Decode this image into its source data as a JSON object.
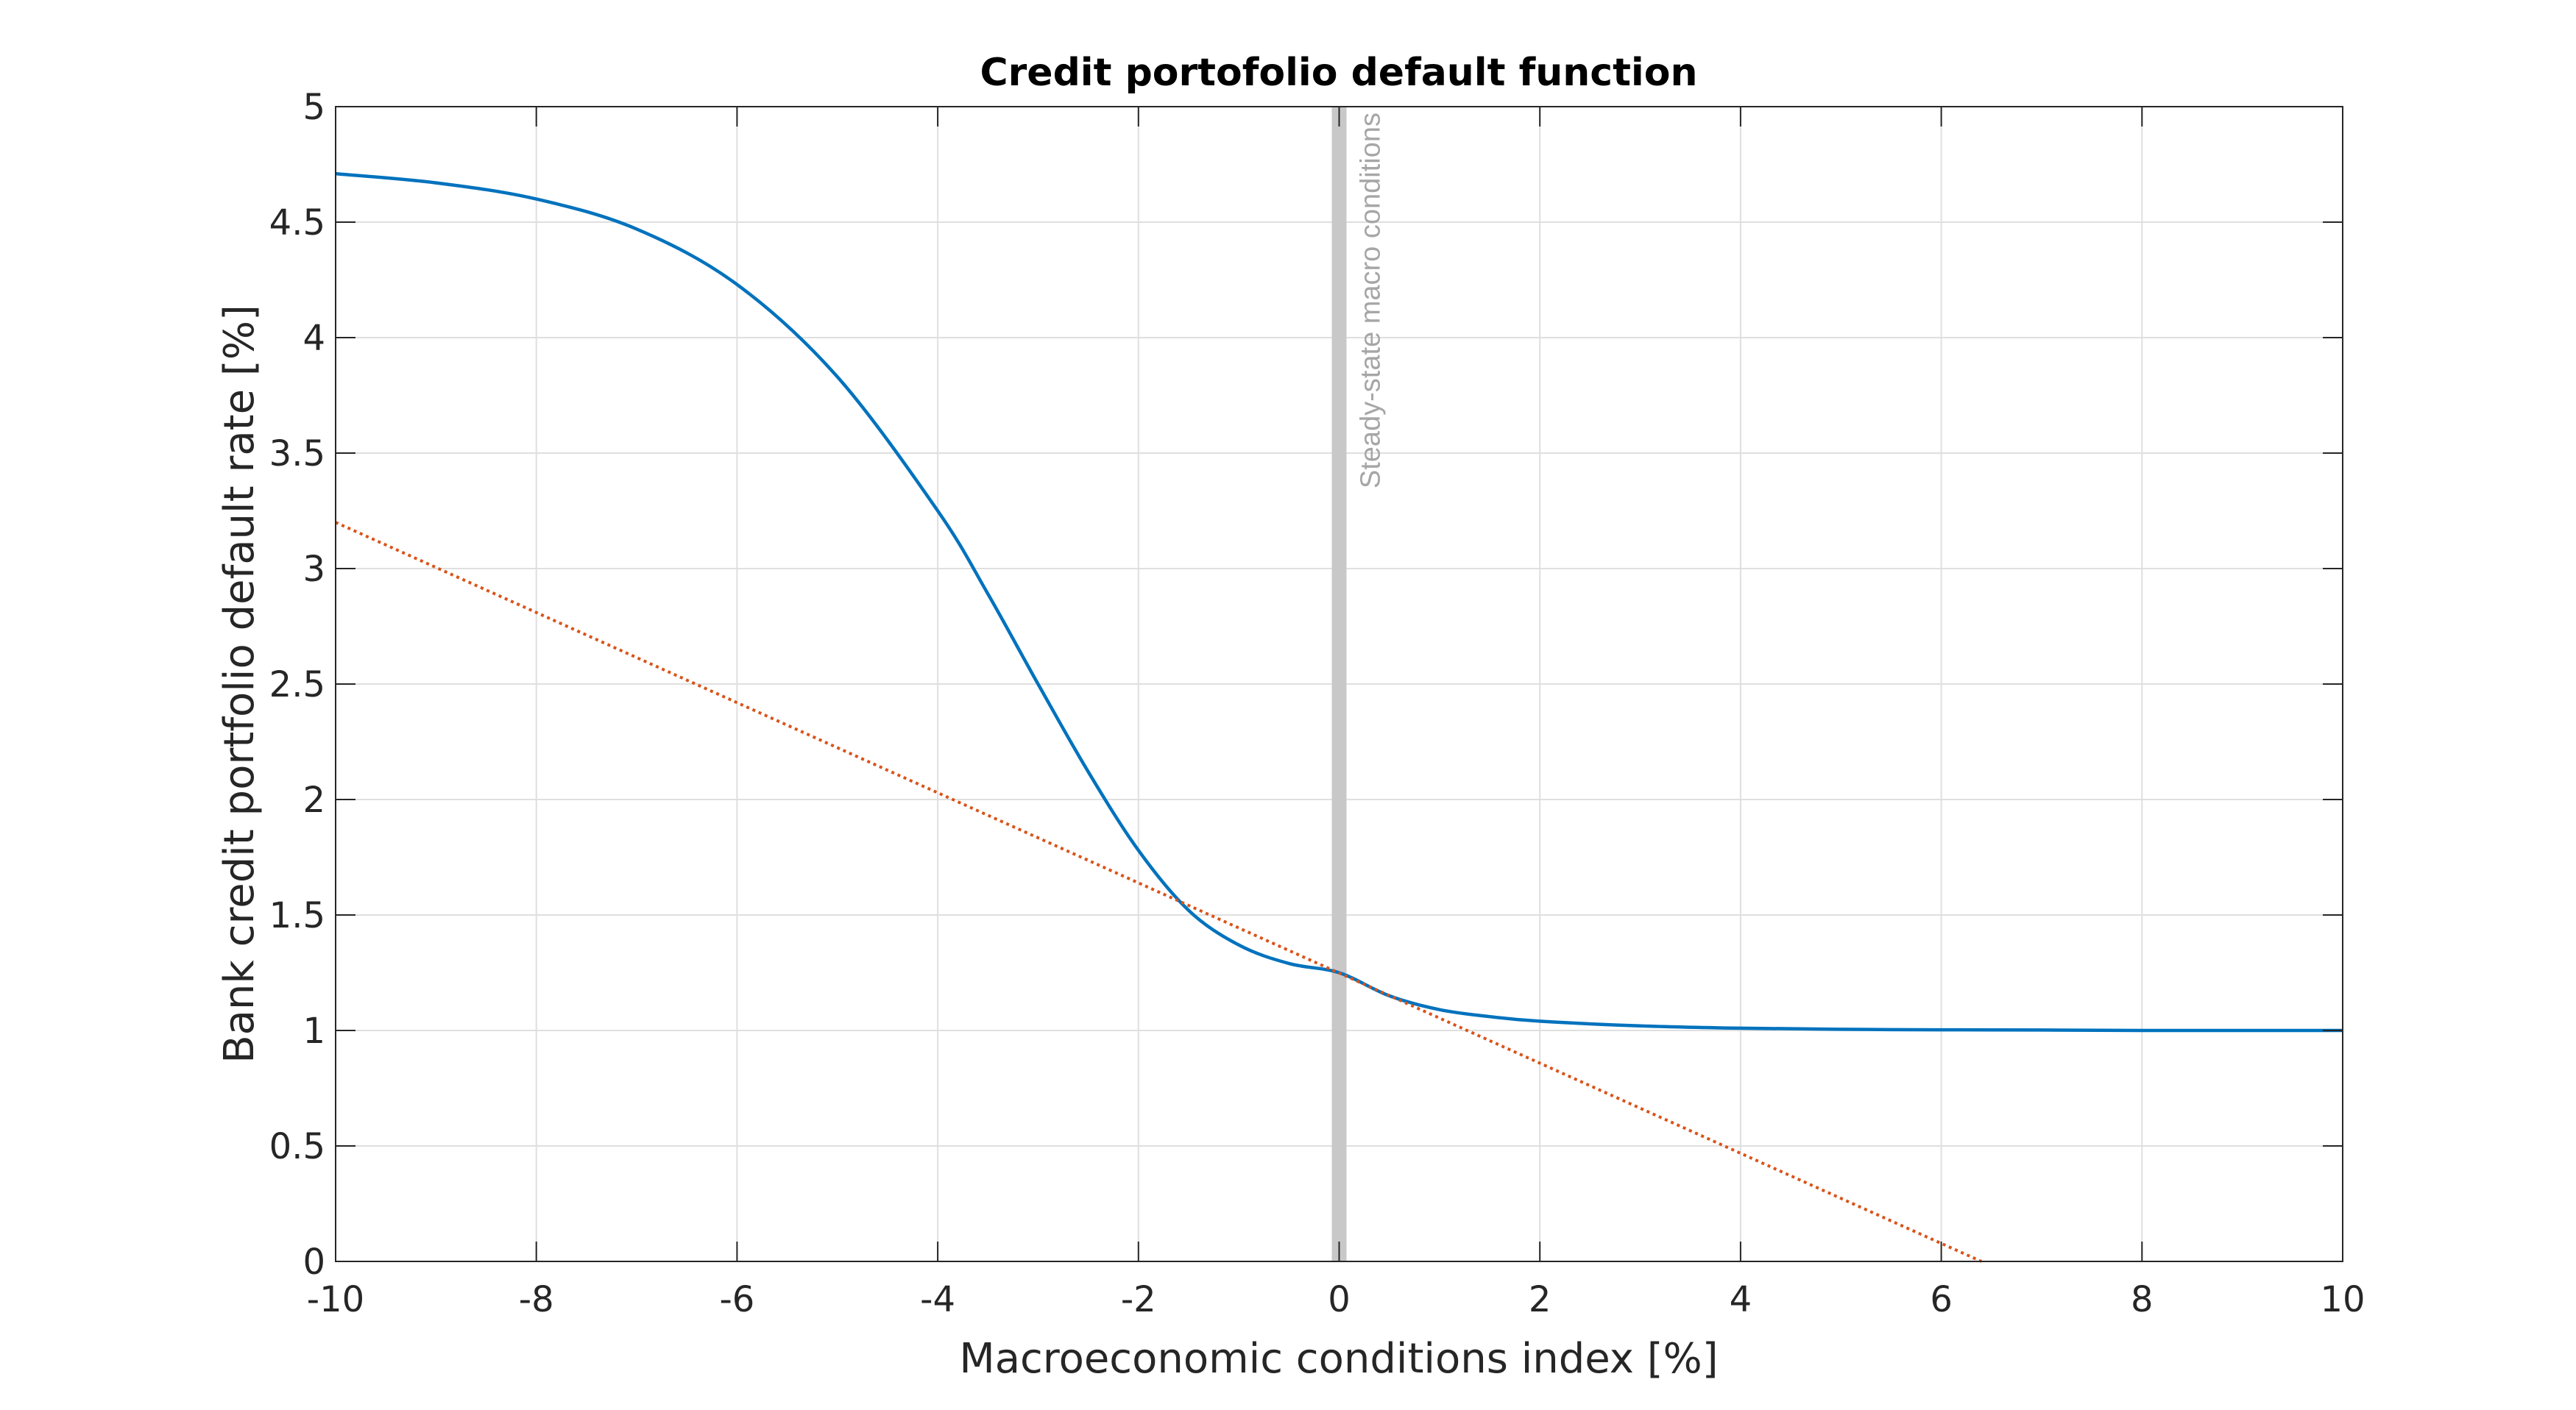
{
  "chart_data": {
    "type": "line",
    "title": "Credit portofolio default function",
    "xlabel": "Macroeconomic conditions index [%]",
    "ylabel": "Bank credit portfolio default rate [%]",
    "xlim": [
      -10,
      10
    ],
    "ylim": [
      0,
      5
    ],
    "xticks": [
      "-10",
      "-8",
      "-6",
      "-4",
      "-2",
      "0",
      "2",
      "4",
      "6",
      "8",
      "10"
    ],
    "yticks": [
      "0",
      "0.5",
      "1",
      "1.5",
      "2",
      "2.5",
      "3",
      "3.5",
      "4",
      "4.5",
      "5"
    ],
    "grid": true,
    "series": [
      {
        "style": "solid",
        "color": "#0072BD",
        "x": [
          -10,
          -9,
          -8,
          -7,
          -6,
          -5,
          -4,
          -3.5,
          -3,
          -2.5,
          -2,
          -1.5,
          -1,
          -0.5,
          0,
          0.5,
          1,
          1.5,
          2,
          3,
          4,
          5,
          6,
          7,
          8,
          9,
          10
        ],
        "y": [
          4.71,
          4.67,
          4.6,
          4.47,
          4.23,
          3.83,
          3.25,
          2.89,
          2.5,
          2.12,
          1.78,
          1.52,
          1.37,
          1.29,
          1.25,
          1.15,
          1.09,
          1.06,
          1.04,
          1.02,
          1.01,
          1.005,
          1.003,
          1.002,
          1.0,
          1.0,
          1.0
        ]
      },
      {
        "style": "dotted",
        "color": "#D95319",
        "x": [
          -10,
          6.4
        ],
        "y": [
          3.2,
          0.0
        ]
      }
    ],
    "annotations": [
      {
        "text": "Steady-state macro conditions",
        "x": 0,
        "color": "#c8c8c8"
      }
    ]
  }
}
